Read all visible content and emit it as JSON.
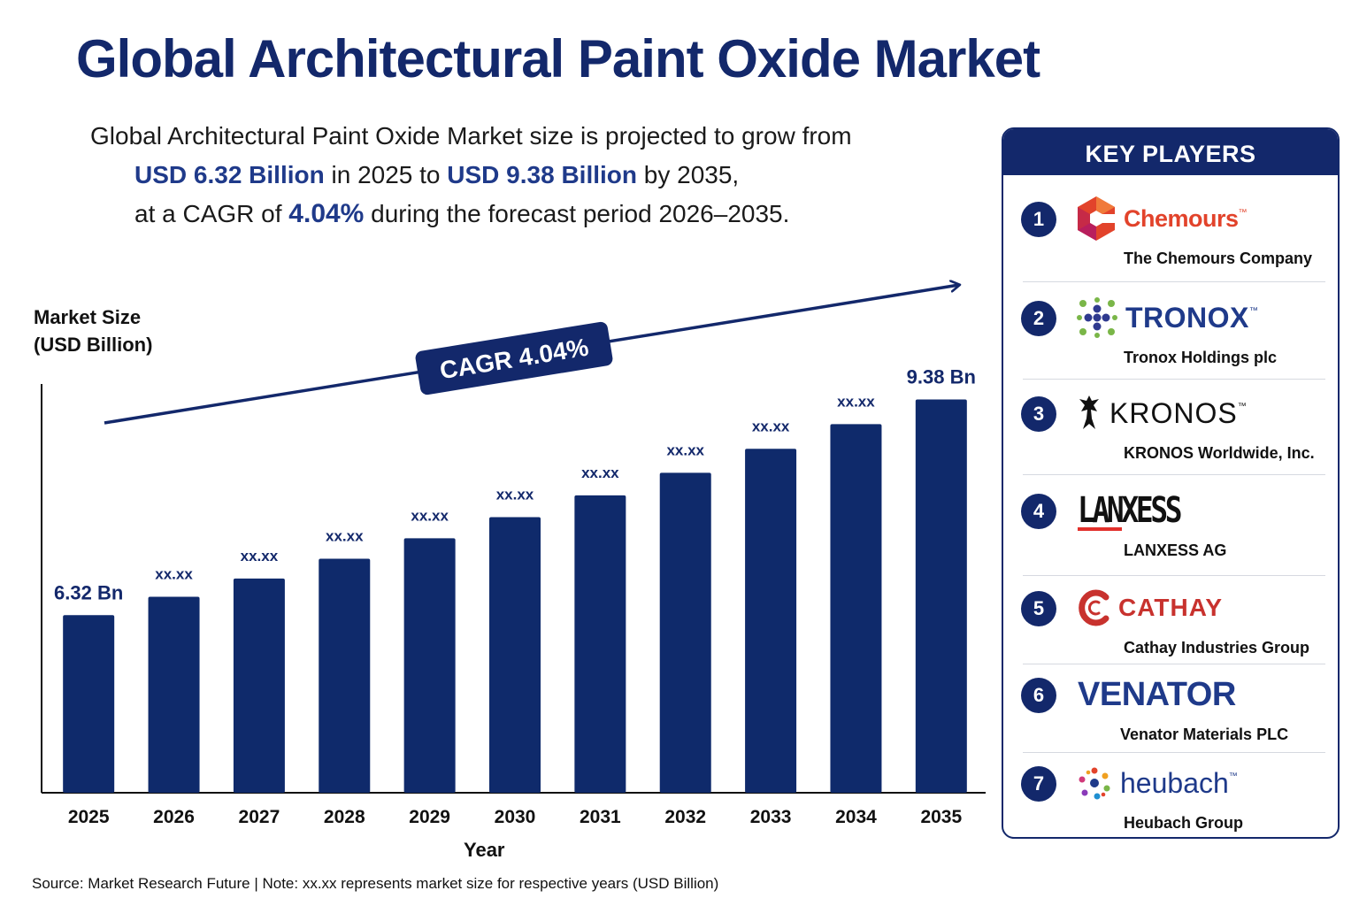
{
  "title": "Global Architectural Paint Oxide Market",
  "subtitle": {
    "line1": "Global Architectural Paint Oxide Market size is projected to grow from",
    "value_2025": "USD 6.32 Billion",
    "mid1": " in 2025 to ",
    "value_2035": "USD 9.38 Billion",
    "mid2": " by 2035,",
    "pre_cagr": "at a CAGR of ",
    "cagr": "4.04%",
    "post_cagr": " during the forecast period 2026–2035."
  },
  "chart_data": {
    "type": "bar",
    "ylabel_lines": [
      "Market Size",
      "(USD Billion)"
    ],
    "xlabel": "Year",
    "categories": [
      "2025",
      "2026",
      "2027",
      "2028",
      "2029",
      "2030",
      "2031",
      "2032",
      "2033",
      "2034",
      "2035"
    ],
    "values": [
      6.32,
      6.58,
      6.84,
      7.12,
      7.41,
      7.71,
      8.02,
      8.34,
      8.68,
      9.03,
      9.38
    ],
    "data_labels": [
      "6.32 Bn",
      "xx.xx",
      "xx.xx",
      "xx.xx",
      "xx.xx",
      "xx.xx",
      "xx.xx",
      "xx.xx",
      "xx.xx",
      "xx.xx",
      "9.38 Bn"
    ],
    "ylim": [
      3.8,
      9.7
    ],
    "grid": false,
    "cagr_label": "CAGR 4.04%",
    "bar_color": "#0f2a6b"
  },
  "source": "Source: Market Research Future | Note: xx.xx represents market size for respective years (USD Billion)",
  "key_players": {
    "header": "KEY PLAYERS",
    "items": [
      {
        "rank": "1",
        "logo_text": "Chemours",
        "tm": "™",
        "name": "The Chemours Company",
        "logo_color": "#e2432b",
        "icon": "chemours-logo-icon"
      },
      {
        "rank": "2",
        "logo_text": "TRONOX",
        "tm": "™",
        "name": "Tronox Holdings plc",
        "logo_color": "#1f3a8a",
        "icon": "tronox-logo-icon"
      },
      {
        "rank": "3",
        "logo_text": "KRONOS",
        "tm": "™",
        "name": "KRONOS Worldwide, Inc.",
        "logo_color": "#111111",
        "icon": "kronos-logo-icon"
      },
      {
        "rank": "4",
        "logo_text": "LANXESS",
        "tm": "",
        "name": "LANXESS AG",
        "logo_color": "#111111",
        "icon": "lanxess-logo-icon"
      },
      {
        "rank": "5",
        "logo_text": "CATHAY",
        "tm": "",
        "name": "Cathay Industries Group",
        "logo_color": "#c8322e",
        "icon": "cathay-logo-icon"
      },
      {
        "rank": "6",
        "logo_text": "VENATOR",
        "tm": "",
        "name": "Venator Materials PLC",
        "logo_color": "#1f3a8a",
        "icon": "venator-logo-icon"
      },
      {
        "rank": "7",
        "logo_text": "heubach",
        "tm": "™",
        "name": "Heubach Group",
        "logo_color": "#1f3a8a",
        "icon": "heubach-logo-icon"
      }
    ]
  }
}
